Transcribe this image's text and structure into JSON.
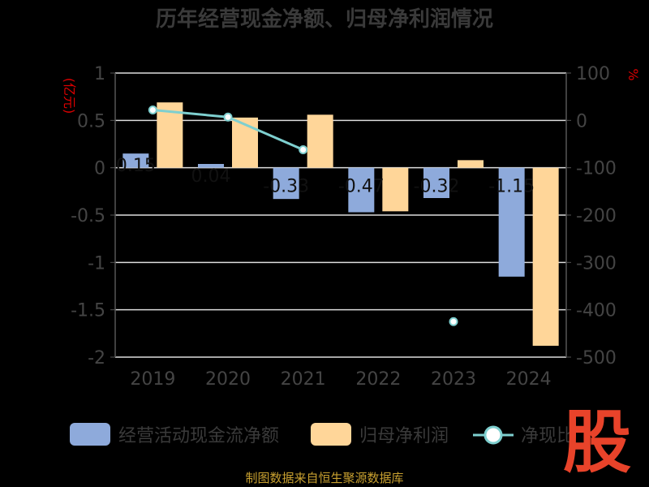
{
  "chart_data": {
    "type": "bar",
    "title": "历年经营现金净额、归母净利润情况",
    "categories": [
      "2019",
      "2020",
      "2021",
      "2022",
      "2023",
      "2024"
    ],
    "series": [
      {
        "name": "经营活动现金流净额",
        "type": "bar",
        "axis": "left",
        "color": "#8eaadb",
        "values": [
          0.15,
          0.04,
          -0.33,
          -0.47,
          -0.32,
          -1.15
        ]
      },
      {
        "name": "归母净利润",
        "type": "bar",
        "axis": "left",
        "color": "#ffd699",
        "values": [
          0.69,
          0.53,
          0.56,
          -0.46,
          0.08,
          -1.88
        ]
      },
      {
        "name": "净现比",
        "type": "line",
        "axis": "right",
        "color": "#7ecfcf",
        "values": [
          22,
          7,
          -62,
          null,
          -425,
          null
        ]
      }
    ],
    "bar_labels": [
      "0.15",
      "0.04",
      "-0.33",
      "-0.47",
      "-0.32",
      "-1.15"
    ],
    "y_left": {
      "unit": "(亿元)",
      "ylim": [
        -2,
        1
      ],
      "ticks": [
        "1",
        "0.5",
        "0",
        "-0.5",
        "-1",
        "-1.5",
        "-2"
      ]
    },
    "y_right": {
      "unit": "%",
      "ylim": [
        -500,
        100
      ],
      "ticks": [
        "100",
        "0",
        "-100",
        "-200",
        "-300",
        "-400",
        "-500"
      ]
    },
    "legend_position": "bottom",
    "grid": true
  },
  "legend": [
    "经营活动现金流净额",
    "归母净利润",
    "净现比"
  ],
  "source": "制图数据来自恒生聚源数据库",
  "logo_text": "股"
}
